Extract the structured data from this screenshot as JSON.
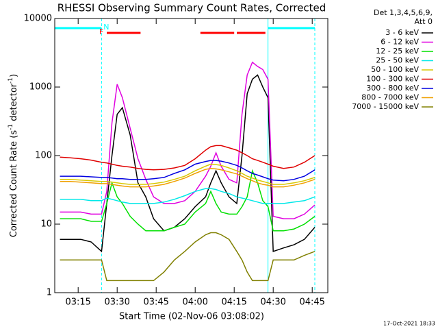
{
  "chart_data": {
    "type": "line",
    "title": "RHESSI Observing Summary Count Rates, Corrected",
    "ylabel": [
      "Corrected Count Rate (s",
      "-1",
      " detector",
      "-1",
      ")"
    ],
    "xlabel": "Start Time (02-Nov-06 03:08:02)",
    "legend_header": [
      "Det 1,3,4,5,6,9,",
      "Att 0"
    ],
    "timestamp": "17-Oct-2021 18:33",
    "log_y": true,
    "xlim": [
      "03:06",
      "04:51"
    ],
    "xticks": [
      "03:15",
      "03:30",
      "03:45",
      "04:00",
      "04:15",
      "04:30",
      "04:45"
    ],
    "ylim": [
      1,
      10000
    ],
    "yticks": [
      1,
      10,
      100,
      1000,
      10000
    ],
    "flags": [
      {
        "label": "N",
        "color": "#00ffff",
        "ranges": [
          [
            "03:06",
            "03:24"
          ],
          [
            "04:28",
            "04:46"
          ]
        ]
      },
      {
        "label": "F",
        "color": "#ff0000",
        "ranges": [
          [
            "03:26",
            "03:39"
          ],
          [
            "04:02",
            "04:15"
          ],
          [
            "04:16",
            "04:27"
          ]
        ]
      }
    ],
    "x": [
      "03:08",
      "03:12",
      "03:16",
      "03:20",
      "03:24",
      "03:26",
      "03:28",
      "03:30",
      "03:32",
      "03:35",
      "03:38",
      "03:41",
      "03:44",
      "03:48",
      "03:52",
      "03:56",
      "04:00",
      "04:04",
      "04:06",
      "04:08",
      "04:10",
      "04:13",
      "04:16",
      "04:18",
      "04:20",
      "04:22",
      "04:24",
      "04:26",
      "04:28",
      "04:30",
      "04:34",
      "04:38",
      "04:42",
      "04:46"
    ],
    "series": [
      {
        "name": "3 - 6 keV",
        "color": "#000000",
        "values": [
          6,
          6,
          6,
          5.5,
          4,
          20,
          100,
          400,
          500,
          200,
          40,
          25,
          12,
          8,
          9,
          12,
          18,
          25,
          40,
          60,
          40,
          25,
          20,
          100,
          800,
          1300,
          1500,
          1000,
          700,
          4,
          4.5,
          5,
          6,
          9
        ]
      },
      {
        "name": "6 - 12 keV",
        "color": "#e000e0",
        "values": [
          15,
          15,
          15,
          14,
          14,
          30,
          300,
          1100,
          700,
          250,
          90,
          45,
          25,
          20,
          20,
          22,
          30,
          50,
          70,
          110,
          70,
          45,
          40,
          400,
          1500,
          2300,
          2000,
          1800,
          1300,
          13,
          12,
          12,
          14,
          19
        ]
      },
      {
        "name": "12 - 25 keV",
        "color": "#00e000",
        "values": [
          12,
          12,
          12,
          11,
          11,
          20,
          40,
          25,
          20,
          13,
          10,
          8,
          8,
          8,
          9,
          10,
          15,
          20,
          30,
          20,
          15,
          14,
          14,
          18,
          25,
          60,
          40,
          22,
          18,
          8,
          8,
          8.5,
          10,
          13
        ]
      },
      {
        "name": "25 - 50 keV",
        "color": "#00e8e8",
        "values": [
          23,
          23,
          23,
          22,
          22,
          24,
          23,
          22,
          21,
          20,
          20,
          20,
          20,
          21,
          23,
          26,
          30,
          33,
          33,
          32,
          30,
          28,
          25,
          24,
          23,
          22,
          21,
          20,
          20,
          20,
          20,
          21,
          22,
          25
        ]
      },
      {
        "name": "50 - 100 keV",
        "color": "#d8c800",
        "values": [
          45,
          45,
          44,
          43,
          42,
          42,
          41,
          40,
          39,
          38,
          38,
          38,
          39,
          41,
          45,
          50,
          60,
          70,
          75,
          74,
          72,
          66,
          60,
          55,
          50,
          47,
          44,
          42,
          40,
          38,
          38,
          40,
          43,
          48
        ]
      },
      {
        "name": "100 - 300 keV",
        "color": "#e00000",
        "values": [
          95,
          93,
          90,
          86,
          80,
          78,
          75,
          72,
          70,
          68,
          65,
          63,
          62,
          63,
          66,
          72,
          90,
          120,
          135,
          140,
          140,
          130,
          120,
          110,
          100,
          90,
          85,
          80,
          75,
          70,
          65,
          68,
          80,
          100
        ]
      },
      {
        "name": "300 - 800 keV",
        "color": "#0000e0",
        "values": [
          50,
          50,
          50,
          49,
          48,
          48,
          47,
          46,
          46,
          45,
          45,
          45,
          46,
          48,
          55,
          62,
          75,
          82,
          85,
          85,
          83,
          78,
          72,
          66,
          60,
          55,
          52,
          49,
          46,
          44,
          43,
          45,
          50,
          62
        ]
      },
      {
        "name": "800 - 7000 keV",
        "color": "#f0a000",
        "values": [
          42,
          42,
          41,
          40,
          39,
          39,
          38,
          37,
          36,
          35,
          35,
          35,
          36,
          38,
          42,
          47,
          55,
          63,
          65,
          64,
          62,
          58,
          54,
          50,
          46,
          43,
          40,
          38,
          37,
          35,
          35,
          37,
          40,
          45
        ]
      },
      {
        "name": "7000 - 15000 keV",
        "color": "#808000",
        "values": [
          3,
          3,
          3,
          3,
          3,
          1.5,
          1.5,
          1.5,
          1.5,
          1.5,
          1.5,
          1.5,
          1.5,
          2,
          3,
          4,
          5.5,
          7,
          7.5,
          7.5,
          7,
          6,
          4,
          3,
          2,
          1.5,
          1.5,
          1.5,
          1.5,
          3,
          3,
          3,
          3.5,
          4
        ]
      }
    ]
  }
}
